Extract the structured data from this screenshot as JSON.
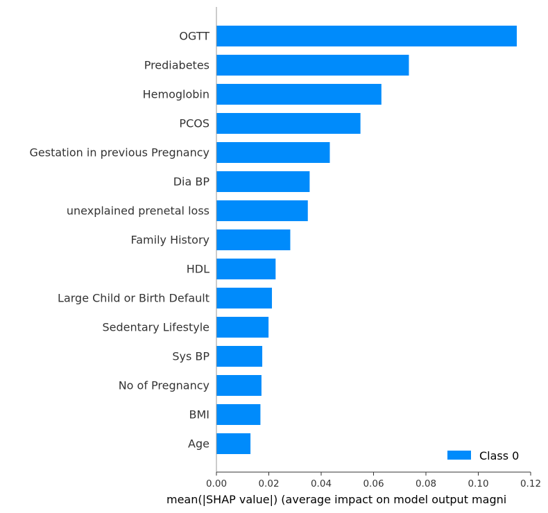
{
  "chart_data": {
    "type": "bar",
    "orientation": "horizontal",
    "categories": [
      "OGTT",
      "Prediabetes",
      "Hemoglobin",
      "PCOS",
      "Gestation in previous Pregnancy",
      "Dia BP",
      "unexplained prenetal loss",
      "Family History",
      "HDL",
      "Large Child or Birth Default",
      "Sedentary Lifestyle",
      "Sys BP",
      "No of Pregnancy",
      "BMI",
      "Age"
    ],
    "series": [
      {
        "name": "Class 0",
        "color": "#008bfb",
        "values": [
          0.1147,
          0.0735,
          0.063,
          0.055,
          0.0433,
          0.0356,
          0.0349,
          0.0282,
          0.0226,
          0.0212,
          0.0199,
          0.0175,
          0.0172,
          0.0168,
          0.013
        ]
      }
    ],
    "xlabel": "mean(|SHAP value|) (average impact on model output magni",
    "xlim": [
      0.0,
      0.12
    ],
    "xticks": [
      "0.00",
      "0.02",
      "0.04",
      "0.06",
      "0.08",
      "0.10",
      "0.12"
    ],
    "grid": false,
    "legend_position": "bottom-right"
  }
}
